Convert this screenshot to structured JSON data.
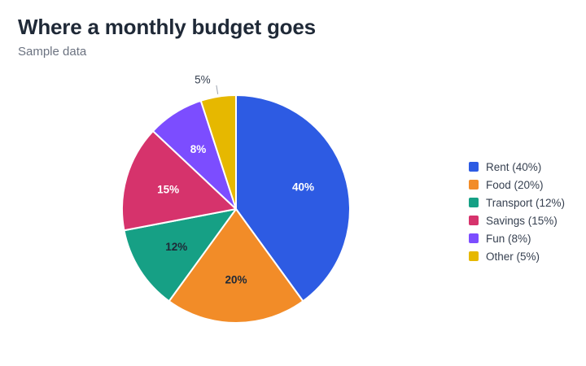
{
  "header": {
    "title": "Where a monthly budget goes",
    "subtitle": "Sample data"
  },
  "chart_data": {
    "type": "pie",
    "title": "Where a monthly budget goes",
    "subtitle": "Sample data",
    "legend_position": "right",
    "slices": [
      {
        "category": "Rent",
        "value": 40,
        "label": "40%",
        "legend": "Rent (40%)",
        "color": "#2d5be3",
        "label_color": "#ffffff"
      },
      {
        "category": "Food",
        "value": 20,
        "label": "20%",
        "legend": "Food (20%)",
        "color": "#f28c28",
        "label_color": "#1f2937"
      },
      {
        "category": "Transport",
        "value": 12,
        "label": "12%",
        "legend": "Transport (12%)",
        "color": "#16a085",
        "label_color": "#1f2937"
      },
      {
        "category": "Savings",
        "value": 15,
        "label": "15%",
        "legend": "Savings (15%)",
        "color": "#d6336c",
        "label_color": "#ffffff"
      },
      {
        "category": "Fun",
        "value": 8,
        "label": "8%",
        "legend": "Fun (8%)",
        "color": "#7c4dff",
        "label_color": "#ffffff"
      },
      {
        "category": "Other",
        "value": 5,
        "label": "5%",
        "legend": "Other (5%)",
        "color": "#e6b800",
        "label_color": "#374151",
        "label_outside": true
      }
    ]
  }
}
